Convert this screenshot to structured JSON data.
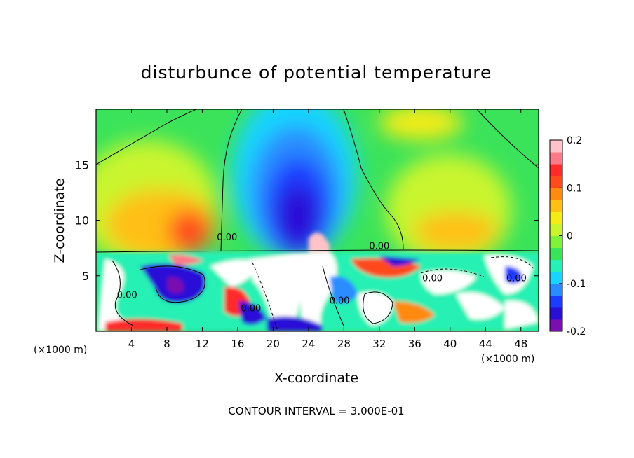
{
  "chart_data": {
    "type": "heatmap",
    "title": "disturbunce of potential temperature",
    "xlabel": "X-coordinate",
    "ylabel": "Z-coordinate",
    "x_unit_left": "(×1000 m)",
    "x_unit_right": "(×1000 m)",
    "footer": "CONTOUR INTERVAL = 3.000E-01",
    "xlim": [
      0,
      50
    ],
    "ylim": [
      0,
      20
    ],
    "x_ticks": [
      4,
      8,
      12,
      16,
      20,
      24,
      28,
      32,
      36,
      40,
      44,
      48
    ],
    "y_ticks": [
      5,
      10,
      15
    ],
    "colorbar": {
      "range": [
        -0.2,
        0.2
      ],
      "tick_labels": [
        "0.2",
        "0.1",
        "0",
        "-0.1",
        "-0.2"
      ],
      "tick_values": [
        0.2,
        0.1,
        0,
        -0.1,
        -0.2
      ],
      "colors": [
        "#7a0fb0",
        "#2a10d6",
        "#1c3cff",
        "#2a8cff",
        "#19d4ff",
        "#27f0b4",
        "#3be35a",
        "#7ff23c",
        "#c9f52e",
        "#f5ec16",
        "#ffbf14",
        "#ff8a10",
        "#ff4a1a",
        "#ff2a2a",
        "#ff7a88",
        "#ffc2c8"
      ]
    },
    "contour_labels": [
      {
        "text": "0.00",
        "x": 14.8,
        "y": 8.2
      },
      {
        "text": "0.00",
        "x": 32,
        "y": 7.4
      },
      {
        "text": "0.00",
        "x": 38,
        "y": 4.5
      },
      {
        "text": "0.00",
        "x": 3.5,
        "y": 3.0
      },
      {
        "text": "0.00",
        "x": 17.5,
        "y": 1.8
      },
      {
        "text": "0.00",
        "x": 27.5,
        "y": 2.5
      },
      {
        "text": "0.00",
        "x": 47.5,
        "y": 4.5
      }
    ],
    "grid": false
  }
}
